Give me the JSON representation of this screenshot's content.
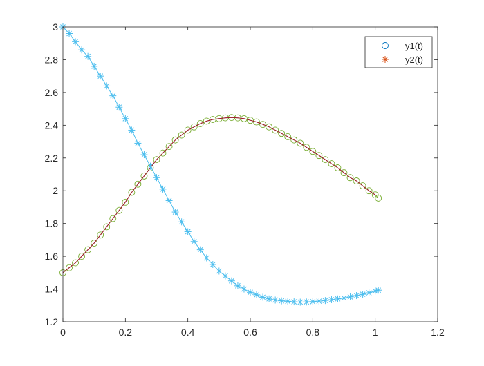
{
  "chart_data": {
    "type": "line",
    "title": "",
    "xlabel": "",
    "ylabel": "",
    "xlim": [
      0,
      1.2
    ],
    "ylim": [
      1.2,
      3
    ],
    "xticks": [
      "0",
      "0.2",
      "0.4",
      "0.6",
      "0.8",
      "1",
      "1.2"
    ],
    "yticks": [
      "1.2",
      "1.4",
      "1.6",
      "1.8",
      "2",
      "2.2",
      "2.4",
      "2.6",
      "2.8",
      "3"
    ],
    "grid": false,
    "legend": {
      "location": "top-right",
      "entries": [
        {
          "label": "y1(t)",
          "marker": "circle",
          "color": "#0072BD"
        },
        {
          "label": "y2(t)",
          "marker": "asterisk",
          "color": "#D95319"
        }
      ]
    },
    "series": [
      {
        "name": "",
        "style": "line+asterisk",
        "color": "#4DBEEE",
        "x": [
          0,
          0.02,
          0.04,
          0.06,
          0.08,
          0.1,
          0.12,
          0.14,
          0.16,
          0.18,
          0.2,
          0.22,
          0.24,
          0.26,
          0.28,
          0.3,
          0.32,
          0.34,
          0.36,
          0.38,
          0.4,
          0.42,
          0.44,
          0.46,
          0.48,
          0.5,
          0.52,
          0.54,
          0.56,
          0.58,
          0.6,
          0.62,
          0.64,
          0.66,
          0.68,
          0.7,
          0.72,
          0.74,
          0.76,
          0.78,
          0.8,
          0.82,
          0.84,
          0.86,
          0.88,
          0.9,
          0.92,
          0.94,
          0.96,
          0.98,
          1.0,
          1.01
        ],
        "y": [
          3.0,
          2.96,
          2.91,
          2.86,
          2.82,
          2.76,
          2.7,
          2.64,
          2.58,
          2.51,
          2.44,
          2.37,
          2.29,
          2.22,
          2.15,
          2.08,
          2.01,
          1.94,
          1.87,
          1.81,
          1.75,
          1.69,
          1.64,
          1.59,
          1.55,
          1.51,
          1.48,
          1.45,
          1.42,
          1.4,
          1.38,
          1.365,
          1.35,
          1.34,
          1.333,
          1.328,
          1.325,
          1.322,
          1.32,
          1.321,
          1.323,
          1.326,
          1.33,
          1.335,
          1.34,
          1.345,
          1.352,
          1.36,
          1.368,
          1.377,
          1.388,
          1.393
        ]
      },
      {
        "name": "",
        "style": "line+circle",
        "color": "#77AC30",
        "x": [
          0,
          0.02,
          0.04,
          0.06,
          0.08,
          0.1,
          0.12,
          0.14,
          0.16,
          0.18,
          0.2,
          0.22,
          0.24,
          0.26,
          0.28,
          0.3,
          0.32,
          0.34,
          0.36,
          0.38,
          0.4,
          0.42,
          0.44,
          0.46,
          0.48,
          0.5,
          0.52,
          0.54,
          0.56,
          0.58,
          0.6,
          0.62,
          0.64,
          0.66,
          0.68,
          0.7,
          0.72,
          0.74,
          0.76,
          0.78,
          0.8,
          0.82,
          0.84,
          0.86,
          0.88,
          0.9,
          0.92,
          0.94,
          0.96,
          0.98,
          1.0,
          1.01
        ],
        "y": [
          1.5,
          1.53,
          1.56,
          1.6,
          1.64,
          1.68,
          1.73,
          1.78,
          1.83,
          1.88,
          1.93,
          1.99,
          2.04,
          2.09,
          2.14,
          2.19,
          2.23,
          2.27,
          2.31,
          2.34,
          2.37,
          2.39,
          2.41,
          2.425,
          2.435,
          2.44,
          2.445,
          2.447,
          2.445,
          2.44,
          2.43,
          2.42,
          2.405,
          2.39,
          2.37,
          2.35,
          2.33,
          2.31,
          2.29,
          2.265,
          2.24,
          2.215,
          2.19,
          2.165,
          2.14,
          2.11,
          2.08,
          2.06,
          2.03,
          2.0,
          1.975,
          1.955
        ]
      },
      {
        "name": "",
        "style": "line",
        "color": "#A2142F",
        "x": [
          0,
          0.02,
          0.04,
          0.06,
          0.08,
          0.1,
          0.12,
          0.14,
          0.16,
          0.18,
          0.2,
          0.22,
          0.24,
          0.26,
          0.28,
          0.3,
          0.32,
          0.34,
          0.36,
          0.38,
          0.4,
          0.42,
          0.44,
          0.46,
          0.48,
          0.5,
          0.52,
          0.54,
          0.56,
          0.58,
          0.6,
          0.62,
          0.64,
          0.66,
          0.68,
          0.7,
          0.72,
          0.74,
          0.76,
          0.78,
          0.8,
          0.82,
          0.84,
          0.86,
          0.88,
          0.9,
          0.92,
          0.94,
          0.96,
          0.98,
          1.0
        ],
        "y": [
          1.5,
          1.53,
          1.56,
          1.6,
          1.64,
          1.68,
          1.73,
          1.78,
          1.83,
          1.88,
          1.93,
          1.99,
          2.04,
          2.09,
          2.14,
          2.19,
          2.23,
          2.27,
          2.31,
          2.34,
          2.37,
          2.39,
          2.41,
          2.425,
          2.435,
          2.44,
          2.445,
          2.447,
          2.445,
          2.44,
          2.43,
          2.42,
          2.405,
          2.39,
          2.37,
          2.35,
          2.33,
          2.31,
          2.29,
          2.265,
          2.24,
          2.215,
          2.19,
          2.165,
          2.14,
          2.11,
          2.08,
          2.06,
          2.03,
          2.0,
          1.975
        ]
      }
    ]
  }
}
